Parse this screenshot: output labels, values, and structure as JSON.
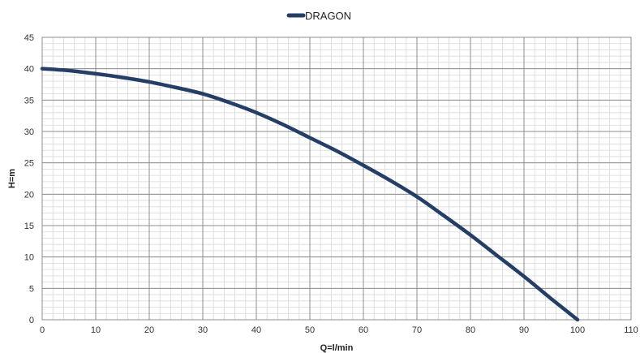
{
  "chart_data": {
    "type": "line",
    "title": "",
    "xlabel": "Q=l/min",
    "ylabel": "H=m",
    "xlim": [
      0,
      110
    ],
    "ylim": [
      0,
      45
    ],
    "x_ticks": [
      0,
      10,
      20,
      30,
      40,
      50,
      60,
      70,
      80,
      90,
      100,
      110
    ],
    "y_ticks": [
      0,
      5,
      10,
      15,
      20,
      25,
      30,
      35,
      40,
      45
    ],
    "x_tick_labels": [
      "0",
      "10",
      "20",
      "30",
      "40",
      "50",
      "60",
      "70",
      "80",
      "90",
      "100",
      "110"
    ],
    "y_tick_labels": [
      "0",
      "5",
      "10",
      "15",
      "20",
      "25",
      "30",
      "35",
      "40",
      "45"
    ],
    "grid": "major and minor",
    "legend_position": "top-center",
    "series": [
      {
        "name": "DRAGON",
        "color": "#253e66",
        "x": [
          0,
          5,
          10,
          15,
          20,
          25,
          30,
          35,
          40,
          45,
          50,
          55,
          60,
          65,
          70,
          75,
          80,
          85,
          90,
          95,
          100
        ],
        "y": [
          40,
          39.7,
          39.2,
          38.6,
          37.9,
          37,
          36,
          34.6,
          33,
          31.1,
          29,
          26.9,
          24.6,
          22.2,
          19.6,
          16.6,
          13.5,
          10.2,
          6.9,
          3.4,
          0
        ]
      }
    ]
  }
}
